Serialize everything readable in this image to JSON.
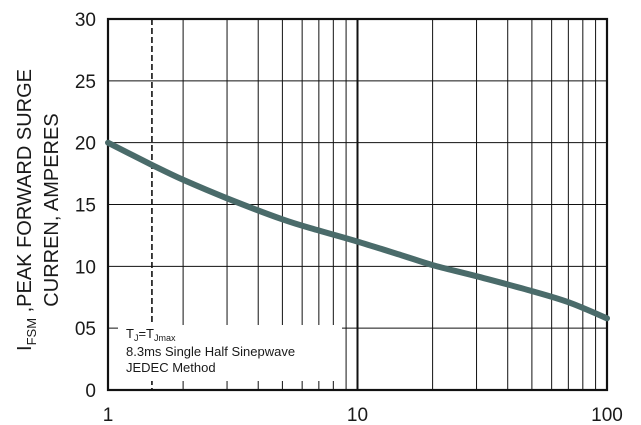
{
  "chart_data": {
    "type": "line",
    "x_scale": "log",
    "xlim": [
      1,
      100
    ],
    "ylim": [
      0,
      30
    ],
    "x_ticks": [
      "1",
      "10",
      "100"
    ],
    "y_ticks": [
      "0",
      "05",
      "10",
      "15",
      "20",
      "25",
      "30"
    ],
    "ylabel": {
      "line1_main": "I",
      "line1_sub": "FSM",
      "line1_rest": " ,PEAK FORWARD SURGE",
      "line2": "CURREN, AMPERES"
    },
    "xlabel": "",
    "grid": true,
    "annotation": {
      "line1_t1": "T",
      "line1_sub1": "J",
      "line1_eq": "=T",
      "line1_sub2": "Jmax",
      "line2": "8.3ms Single Half  Sinepwave",
      "line3": "JEDEC Method"
    },
    "series": [
      {
        "color": "#4a6b6a",
        "x": [
          1,
          1.5,
          2,
          3,
          5,
          7,
          10,
          15,
          20,
          30,
          50,
          70,
          100
        ],
        "y": [
          20,
          18.2,
          17.0,
          15.5,
          13.8,
          12.9,
          12.0,
          10.9,
          10.1,
          9.2,
          8.0,
          7.1,
          5.8
        ]
      }
    ]
  }
}
